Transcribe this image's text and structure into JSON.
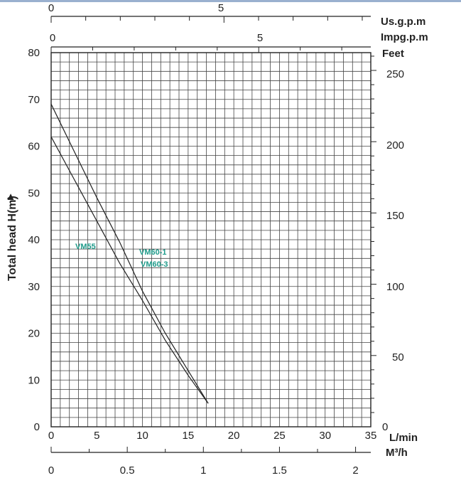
{
  "chart_data": {
    "type": "line",
    "ylabel": "Total head H(m)",
    "xlabel": "L/min",
    "xlim": [
      0,
      35
    ],
    "ylim": [
      0,
      80
    ],
    "x_ticks": [
      "0",
      "5",
      "10",
      "15",
      "20",
      "25",
      "30",
      "35"
    ],
    "y_ticks": [
      "0",
      "10",
      "20",
      "30",
      "40",
      "50",
      "60",
      "70",
      "80"
    ],
    "secondary_axes": {
      "top_usgpm": {
        "unit": "Us.g.p.m",
        "ticks": [
          "0",
          "5"
        ],
        "tick_values": [
          0,
          5
        ]
      },
      "top_impgpm": {
        "unit": "Impg.p.m",
        "ticks": [
          "0",
          "5"
        ],
        "tick_values": [
          0,
          5
        ]
      },
      "right_feet": {
        "unit": "Feet",
        "ticks": [
          "0",
          "50",
          "100",
          "150",
          "200",
          "250"
        ],
        "tick_values": [
          0,
          50,
          100,
          150,
          200,
          250
        ]
      },
      "bottom_m3h": {
        "unit": "M³/h",
        "ticks": [
          "0",
          "0.5",
          "1",
          "1.5",
          "2"
        ],
        "tick_values": [
          0,
          0.5,
          1,
          1.5,
          2
        ]
      }
    },
    "grid": true,
    "series": [
      {
        "name": "VM60-1 / VM60-3",
        "x": [
          0,
          2.5,
          5,
          7.5,
          10,
          12.5,
          15,
          17.2
        ],
        "y": [
          69,
          59,
          49,
          39.5,
          29,
          20,
          12,
          5
        ]
      },
      {
        "name": "VM55",
        "x": [
          0,
          2.5,
          5,
          7.5,
          10,
          12.5,
          15,
          17.2
        ],
        "y": [
          62,
          53,
          44,
          35,
          27,
          18.5,
          11,
          5
        ]
      }
    ],
    "annotations": [
      "VM55",
      "VM60-1",
      "VM60-3"
    ]
  },
  "colors": {
    "line": "#222222",
    "grid": "#444444",
    "label_teal": "#1e9b8a",
    "top_border": "#9ab0cf"
  },
  "icons": {
    "arrow": "up-triangle-icon",
    "arrow_glyph": "▲"
  }
}
